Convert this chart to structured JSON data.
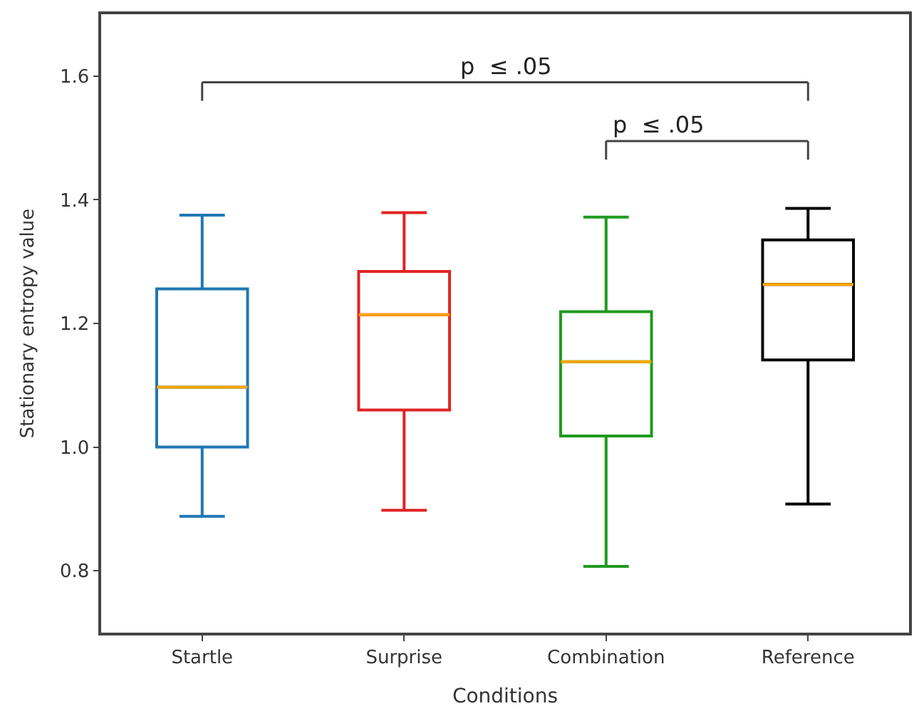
{
  "chart_data": {
    "type": "box",
    "xlabel": "Conditions",
    "ylabel": "Stationary entropy value",
    "categories": [
      "Startle",
      "Surprise",
      "Combination",
      "Reference"
    ],
    "colors": [
      "#1f77b4",
      "#e02424",
      "#1f9a1f",
      "#000000"
    ],
    "boxes": [
      {
        "low": 0.888,
        "q1": 1.0,
        "median": 1.097,
        "q3": 1.256,
        "high": 1.375
      },
      {
        "low": 0.898,
        "q1": 1.06,
        "median": 1.214,
        "q3": 1.284,
        "high": 1.379
      },
      {
        "low": 0.807,
        "q1": 1.018,
        "median": 1.138,
        "q3": 1.219,
        "high": 1.372
      },
      {
        "low": 0.908,
        "q1": 1.141,
        "median": 1.263,
        "q3": 1.335,
        "high": 1.386
      }
    ],
    "ylim": [
      0.7,
      1.7
    ],
    "yticks": [
      {
        "value": 0.8,
        "label": "0.8"
      },
      {
        "value": 1.0,
        "label": "1.0"
      },
      {
        "value": 1.2,
        "label": "1.2"
      },
      {
        "value": 1.4,
        "label": "1.4"
      },
      {
        "value": 1.6,
        "label": "1.6"
      }
    ],
    "grid": false,
    "legend": false,
    "annotations": [
      "p  ≤ .05",
      "p  ≤ .05"
    ]
  }
}
